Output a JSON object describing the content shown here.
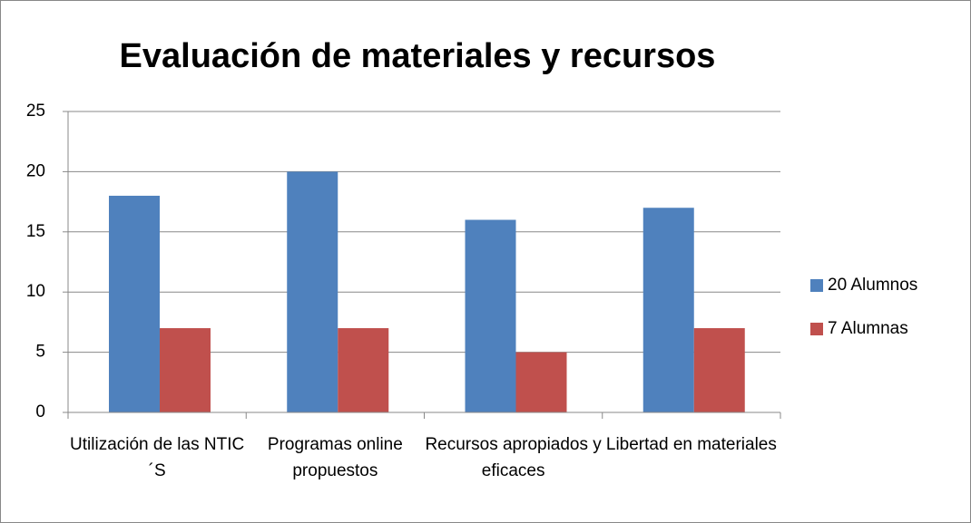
{
  "chart_data": {
    "type": "bar",
    "title": "Evaluación de materiales y recursos",
    "categories": [
      "Utilización de las NTIC´S",
      "Programas online propuestos",
      "Recursos apropiados y eficaces",
      "Libertad en materiales"
    ],
    "series": [
      {
        "name": "20 Alumnos",
        "color": "#4f81bd",
        "values": [
          18,
          20,
          16,
          17
        ]
      },
      {
        "name": "7 Alumnas",
        "color": "#c0504d",
        "values": [
          7,
          7,
          5,
          7
        ]
      }
    ],
    "ylim": [
      0,
      25
    ],
    "yticks": [
      0,
      5,
      10,
      15,
      20,
      25
    ],
    "grid": true,
    "legend": "right"
  }
}
